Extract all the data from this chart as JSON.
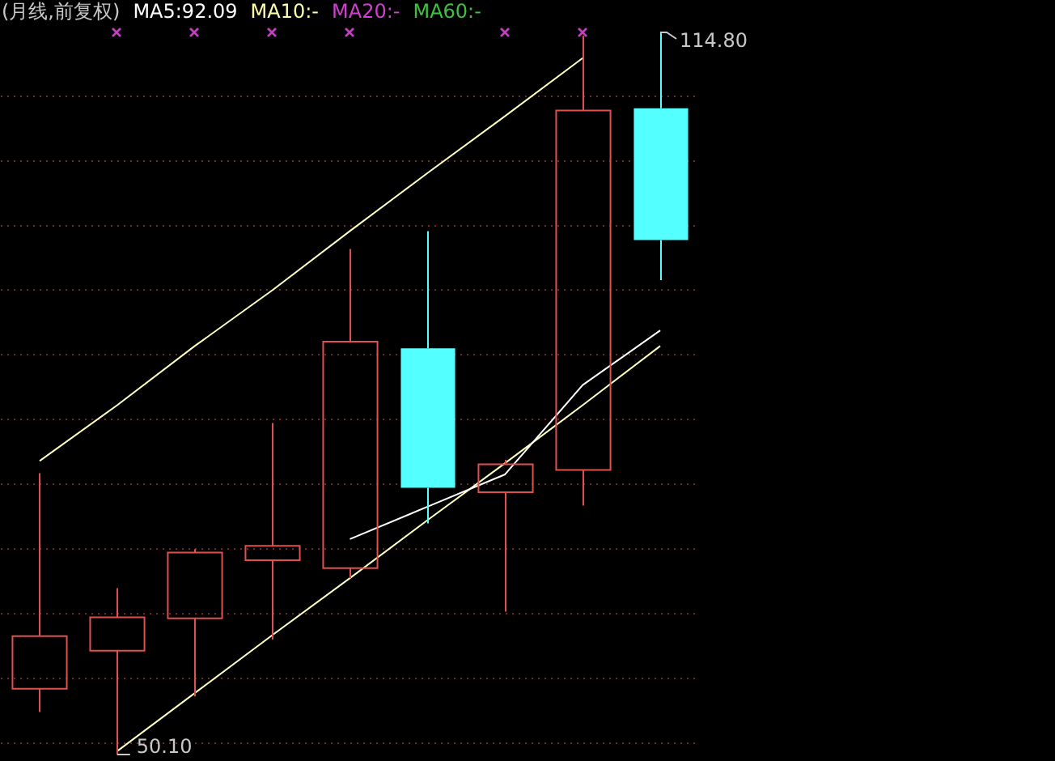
{
  "chart_data": {
    "type": "candlestick",
    "title": "(月线,前复权)",
    "legend": "top left",
    "grid": "y",
    "categories": [
      null,
      null,
      null,
      null,
      null,
      null,
      null,
      null,
      null
    ],
    "ohlc": [
      [
        56.0,
        75.3,
        53.9,
        60.7
      ],
      [
        59.4,
        65.0,
        50.1,
        62.4
      ],
      [
        62.3,
        68.5,
        55.3,
        68.2
      ],
      [
        67.5,
        79.8,
        60.4,
        68.8
      ],
      [
        66.8,
        95.4,
        65.9,
        87.1
      ],
      [
        86.5,
        97.0,
        70.8,
        74.0
      ],
      [
        73.6,
        76.5,
        62.9,
        76.1
      ],
      [
        75.6,
        114.5,
        72.4,
        107.8
      ],
      [
        108.0,
        114.8,
        92.6,
        96.2
      ]
    ],
    "colors": [
      "#e05050",
      "#e05050",
      "#e05050",
      "#e05050",
      "#e05050",
      "#54ffff",
      "#e05050",
      "#e05050",
      "#54ffff"
    ],
    "yticks": [
      {
        "value": 51.1,
        "label": null
      },
      {
        "value": 56.9,
        "label": null
      },
      {
        "value": 62.7,
        "label": null
      },
      {
        "value": 68.5,
        "label": null
      },
      {
        "value": 74.3,
        "label": null
      },
      {
        "value": 80.1,
        "label": null
      },
      {
        "value": 85.9,
        "label": null
      },
      {
        "value": 91.7,
        "label": null
      },
      {
        "value": 97.5,
        "label": null
      },
      {
        "value": 103.3,
        "label": null
      },
      {
        "value": 109.1,
        "label": null
      }
    ],
    "series": [
      {
        "name": "MA5:92.09",
        "type": "line",
        "color": "#ffffff",
        "values": [
          null,
          null,
          null,
          null,
          69.4,
          72.3,
          75.2,
          83.2,
          88.1
        ]
      },
      {
        "name": "MA10:-",
        "type": "line",
        "color": "#ffffa8",
        "values": [
          null,
          null,
          null,
          null,
          null,
          null,
          null,
          null,
          null
        ]
      },
      {
        "name": "MA20:-",
        "type": "line",
        "color": "#d040d0",
        "values": [
          null,
          null,
          null,
          null,
          null,
          null,
          null,
          null,
          null
        ]
      },
      {
        "name": "MA60:-",
        "type": "line",
        "color": "#40c040",
        "values": [
          null,
          null,
          null,
          null,
          null,
          null,
          null,
          null,
          null
        ]
      },
      {
        "type": "line",
        "color": "#ffffc0",
        "values": [
          76.4,
          81.4,
          86.7,
          91.7,
          97.0,
          102.2,
          107.3,
          112.5,
          null
        ]
      },
      {
        "type": "line",
        "color": "#ffffc0",
        "values": [
          null,
          50.4,
          55.6,
          60.8,
          65.9,
          71.1,
          76.2,
          81.4,
          86.7
        ]
      }
    ],
    "annotations": [
      "114.80",
      "50.10"
    ]
  }
}
